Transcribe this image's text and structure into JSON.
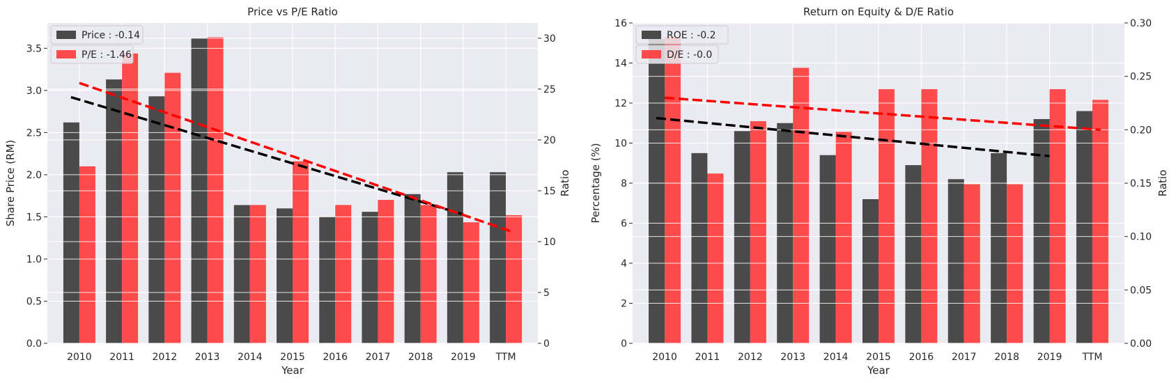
{
  "chart_data": [
    {
      "type": "bar",
      "title": "Price vs P/E Ratio",
      "xlabel": "Year",
      "ylabel": "Share Price (RM)",
      "y2label": "Ratio",
      "categories": [
        "2010",
        "2011",
        "2012",
        "2013",
        "2014",
        "2015",
        "2016",
        "2017",
        "2018",
        "2019",
        "TTM"
      ],
      "ylim": [
        0,
        3.8
      ],
      "y2lim": [
        0,
        31.5
      ],
      "yticks": [
        "0.0",
        "0.5",
        "1.0",
        "1.5",
        "2.0",
        "2.5",
        "3.0",
        "3.5"
      ],
      "y2ticks": [
        "0",
        "5",
        "10",
        "15",
        "20",
        "25",
        "30"
      ],
      "series": [
        {
          "name": "Price : -0.14",
          "axis": "left",
          "color": "#333333",
          "values": [
            2.62,
            3.13,
            2.93,
            3.62,
            1.64,
            1.6,
            1.5,
            1.56,
            1.77,
            2.03,
            2.03
          ],
          "trend": {
            "x_start": "2010",
            "x_end": "2019",
            "y_start": 2.92,
            "y_end": 1.53,
            "color": "#000000"
          }
        },
        {
          "name": "P/E : -1.46",
          "axis": "right",
          "color": "#ff3333",
          "values": [
            17.4,
            28.5,
            26.6,
            30.1,
            13.6,
            17.9,
            13.6,
            14.1,
            13.6,
            11.9,
            12.6
          ],
          "trend": {
            "x_start": "2010",
            "x_end": "TTM",
            "y_start": 25.6,
            "y_end": 10.9,
            "color": "#ff0000"
          }
        }
      ],
      "grid": true,
      "legend_position": "top-left"
    },
    {
      "type": "bar",
      "title": "Return on Equity & D/E Ratio",
      "xlabel": "Year",
      "ylabel": "Percentage (%)",
      "y2label": "Ratio",
      "categories": [
        "2010",
        "2011",
        "2012",
        "2013",
        "2014",
        "2015",
        "2016",
        "2017",
        "2018",
        "2019",
        "TTM"
      ],
      "ylim": [
        0,
        16
      ],
      "y2lim": [
        0,
        0.3
      ],
      "yticks": [
        "0",
        "2",
        "4",
        "6",
        "8",
        "10",
        "12",
        "14",
        "16"
      ],
      "y2ticks": [
        "0.00",
        "0.05",
        "0.10",
        "0.15",
        "0.20",
        "0.25",
        "0.30"
      ],
      "series": [
        {
          "name": "ROE : -0.2",
          "axis": "left",
          "color": "#333333",
          "values": [
            15.2,
            9.5,
            10.6,
            11.0,
            9.4,
            7.2,
            8.9,
            8.2,
            9.5,
            11.2,
            11.6
          ],
          "trend": {
            "x_start": "2010",
            "x_end": "2019",
            "y_start": 11.25,
            "y_end": 9.35,
            "color": "#000000"
          }
        },
        {
          "name": "D/E : -0.0",
          "axis": "right",
          "color": "#ff3333",
          "values": [
            0.287,
            0.159,
            0.208,
            0.258,
            0.198,
            0.238,
            0.238,
            0.149,
            0.149,
            0.238,
            0.228
          ],
          "trend": {
            "x_start": "2010",
            "x_end": "TTM",
            "y_start": 0.23,
            "y_end": 0.2,
            "color": "#ff0000"
          }
        }
      ],
      "grid": true,
      "legend_position": "top-left"
    }
  ]
}
